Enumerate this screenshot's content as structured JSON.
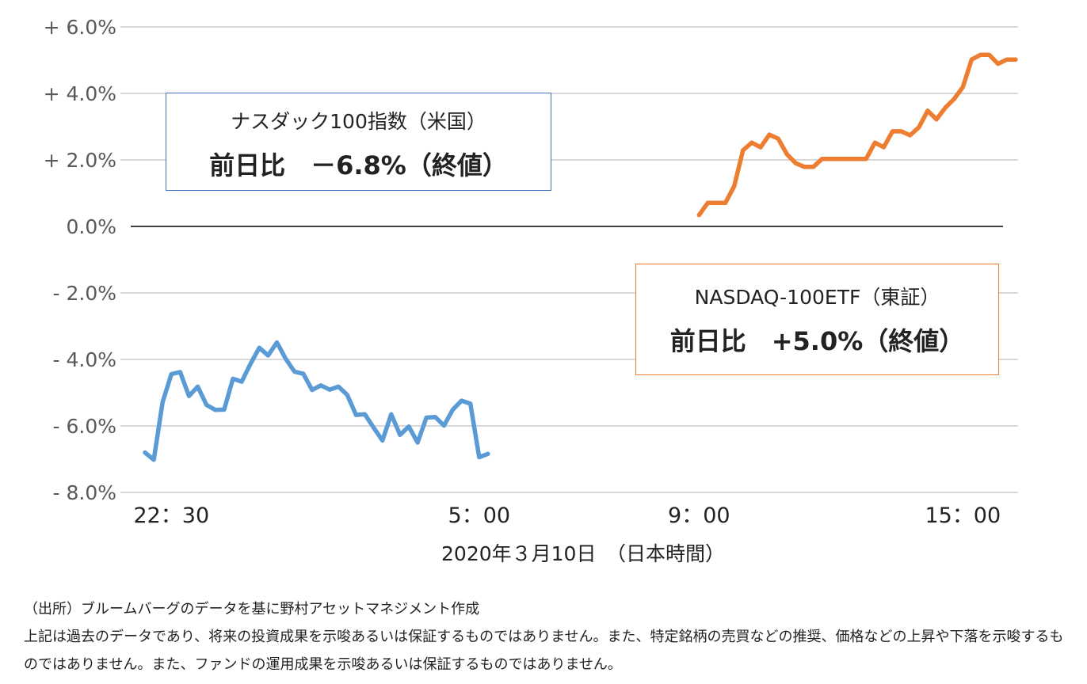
{
  "chart_data": {
    "type": "line",
    "ylim": [
      -8.0,
      6.0
    ],
    "yticks": [
      {
        "value": 6,
        "label": "+ 6.0%"
      },
      {
        "value": 4,
        "label": "+ 4.0%"
      },
      {
        "value": 2,
        "label": "+ 2.0%"
      },
      {
        "value": 0,
        "label": "0.0%"
      },
      {
        "value": -2,
        "label": "- 2.0%"
      },
      {
        "value": -4,
        "label": "- 4.0%"
      },
      {
        "value": -6,
        "label": "- 6.0%"
      },
      {
        "value": -8,
        "label": "- 8.0%"
      }
    ],
    "grid": true,
    "xticks": [
      {
        "slot": 3,
        "label": "22：30"
      },
      {
        "slot": 38,
        "label": "5：00"
      },
      {
        "slot": 63,
        "label": "9：00"
      },
      {
        "slot": 93,
        "label": "15：00"
      }
    ],
    "xlabel": "2020年３月10日　（日本時間）",
    "series": [
      {
        "name": "ナスダック100指数（米国）",
        "color": "#5b9bd5",
        "start_slot": 0,
        "values": [
          -6.8,
          -7.02,
          -5.29,
          -4.44,
          -4.38,
          -5.1,
          -4.82,
          -5.37,
          -5.52,
          -5.51,
          -4.58,
          -4.67,
          -4.13,
          -3.65,
          -3.88,
          -3.49,
          -3.98,
          -4.37,
          -4.43,
          -4.92,
          -4.78,
          -4.91,
          -4.82,
          -5.07,
          -5.67,
          -5.65,
          -6.05,
          -6.44,
          -5.65,
          -6.27,
          -6.02,
          -6.5,
          -5.75,
          -5.73,
          -5.99,
          -5.51,
          -5.24,
          -5.33,
          -6.94,
          -6.84
        ]
      },
      {
        "name": "NASDAQ-100ETF（東証）",
        "color": "#ed7d31",
        "start_slot": 63,
        "values": [
          0.34,
          0.71,
          0.71,
          0.71,
          1.21,
          2.29,
          2.52,
          2.38,
          2.76,
          2.64,
          2.17,
          1.9,
          1.79,
          1.79,
          2.03,
          2.03,
          2.03,
          2.03,
          2.03,
          2.03,
          2.52,
          2.38,
          2.86,
          2.86,
          2.74,
          2.98,
          3.48,
          3.22,
          3.57,
          3.83,
          4.19,
          5.02,
          5.16,
          5.16,
          4.89,
          5.02,
          5.02
        ]
      }
    ],
    "annotations": {
      "blue": {
        "line1": "ナスダック100指数（米国）",
        "line2": "前日比　－6.8%（終値）",
        "border": "#4472c4"
      },
      "orange": {
        "line1": "NASDAQ-100ETF（東証）",
        "line2": "前日比　+5.0%（終値）",
        "border": "#ed7d31"
      }
    }
  },
  "notes": {
    "source": "（出所）ブルームバーグのデータを基に野村アセットマネジメント作成",
    "disclaimer": "上記は過去のデータであり、将来の投資成果を示唆あるいは保証するものではありません。また、特定銘柄の売買などの推奨、価格などの上昇や下落を示唆するものではありません。また、ファンドの運用成果を示唆あるいは保証するものではありません。"
  }
}
